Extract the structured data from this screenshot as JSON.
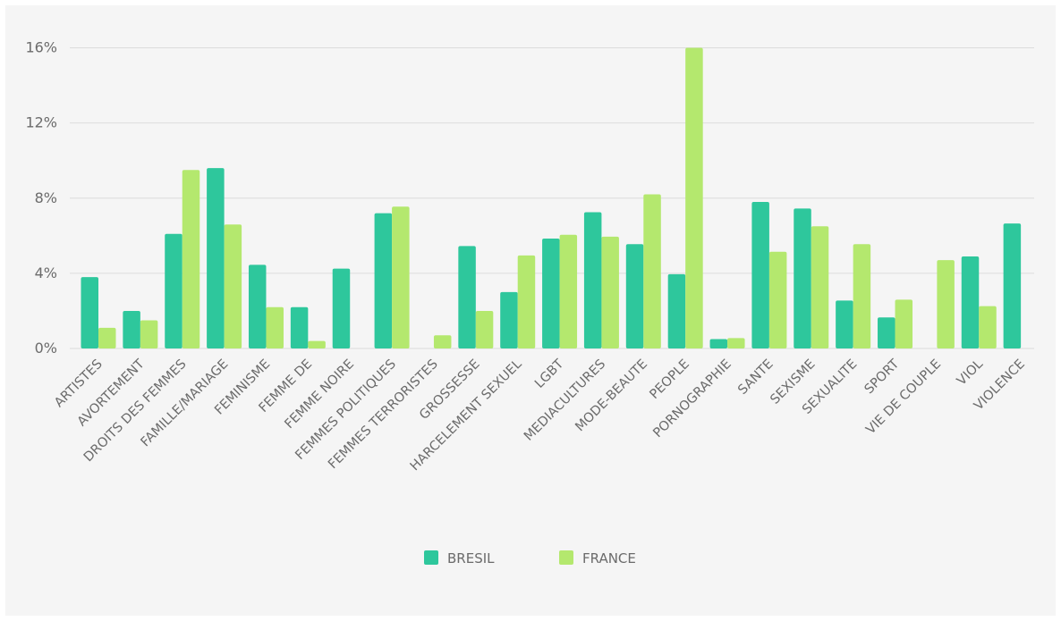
{
  "chart_data": {
    "type": "bar",
    "title": "",
    "xlabel": "",
    "ylabel": "",
    "ylim": [
      0,
      16
    ],
    "y_ticks": [
      0,
      4,
      8,
      12,
      16
    ],
    "y_tick_labels": [
      "0%",
      "4%",
      "8%",
      "12%",
      "16%"
    ],
    "grid": true,
    "legend_position": "bottom",
    "categories": [
      "ARTISTES",
      "AVORTEMENT",
      "DROITS DES FEMMES",
      "FAMILLE/MARIAGE",
      "FEMINISME",
      "FEMME DE",
      "FEMME NOIRE",
      "FEMMES POLITIQUES",
      "FEMMES TERRORISTES",
      "GROSSESSE",
      "HARCELEMENT SEXUEL",
      "LGBT",
      "MEDIACULTURES",
      "MODE-BEAUTE",
      "PEOPLE",
      "PORNOGRAPHIE",
      "SANTE",
      "SEXISME",
      "SEXUALITE",
      "SPORT",
      "VIE DE COUPLE",
      "VIOL",
      "VIOLENCE"
    ],
    "series": [
      {
        "name": "BRESIL",
        "color": "#2ec79c",
        "values": [
          3.8,
          2.0,
          6.1,
          9.6,
          4.45,
          2.2,
          4.25,
          7.2,
          0,
          5.45,
          3.0,
          5.85,
          7.25,
          5.55,
          3.95,
          0.5,
          7.8,
          7.45,
          2.55,
          1.65,
          0,
          4.9,
          6.65
        ]
      },
      {
        "name": "FRANCE",
        "color": "#b4e86e",
        "values": [
          1.1,
          1.5,
          9.5,
          6.6,
          2.2,
          0.4,
          0,
          7.55,
          0.7,
          2.0,
          4.95,
          6.05,
          5.95,
          8.2,
          16.0,
          0.55,
          5.15,
          6.5,
          5.55,
          2.6,
          4.7,
          2.25,
          0
        ]
      }
    ]
  }
}
